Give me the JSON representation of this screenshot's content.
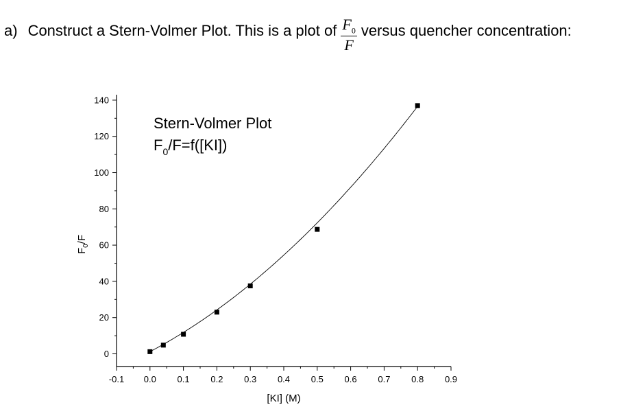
{
  "question": {
    "label": "a)",
    "text_before": "Construct a Stern-Volmer Plot. This is a plot of",
    "frac_num": "F",
    "frac_num_sub": "0",
    "frac_den": "F",
    "text_after": "versus quencher concentration:"
  },
  "chart_data": {
    "type": "scatter",
    "title_line1": "Stern-Volmer Plot",
    "title_line2": "F0/F=f([KI])",
    "xlabel": "[KI] (M)",
    "ylabel": "F0/F",
    "xlim": [
      -0.1,
      0.9
    ],
    "ylim": [
      -7,
      143
    ],
    "x_ticks": [
      -0.1,
      0.0,
      0.1,
      0.2,
      0.3,
      0.4,
      0.5,
      0.6,
      0.7,
      0.8,
      0.9
    ],
    "x_tick_labels": [
      "-0.1",
      "0.0",
      "0.1",
      "0.2",
      "0.3",
      "0.4",
      "0.5",
      "0.6",
      "0.7",
      "0.8",
      "0.9"
    ],
    "y_ticks": [
      0,
      20,
      40,
      60,
      80,
      100,
      120,
      140
    ],
    "y_tick_labels": [
      "0",
      "20",
      "40",
      "60",
      "80",
      "100",
      "120",
      "140"
    ],
    "grid": false,
    "series": [
      {
        "x": [
          0.0,
          0.04,
          0.1,
          0.2,
          0.3,
          0.5,
          0.8
        ],
        "y": [
          1.2,
          4.8,
          10.8,
          23.0,
          37.5,
          68.7,
          137.0
        ]
      }
    ],
    "fit": {
      "type": "quadratic",
      "coefficients": [
        1.2,
        97.2,
        90.0
      ],
      "x_range": [
        0.0,
        0.8
      ]
    },
    "marker_color": "#000000",
    "line_color": "#000000"
  }
}
